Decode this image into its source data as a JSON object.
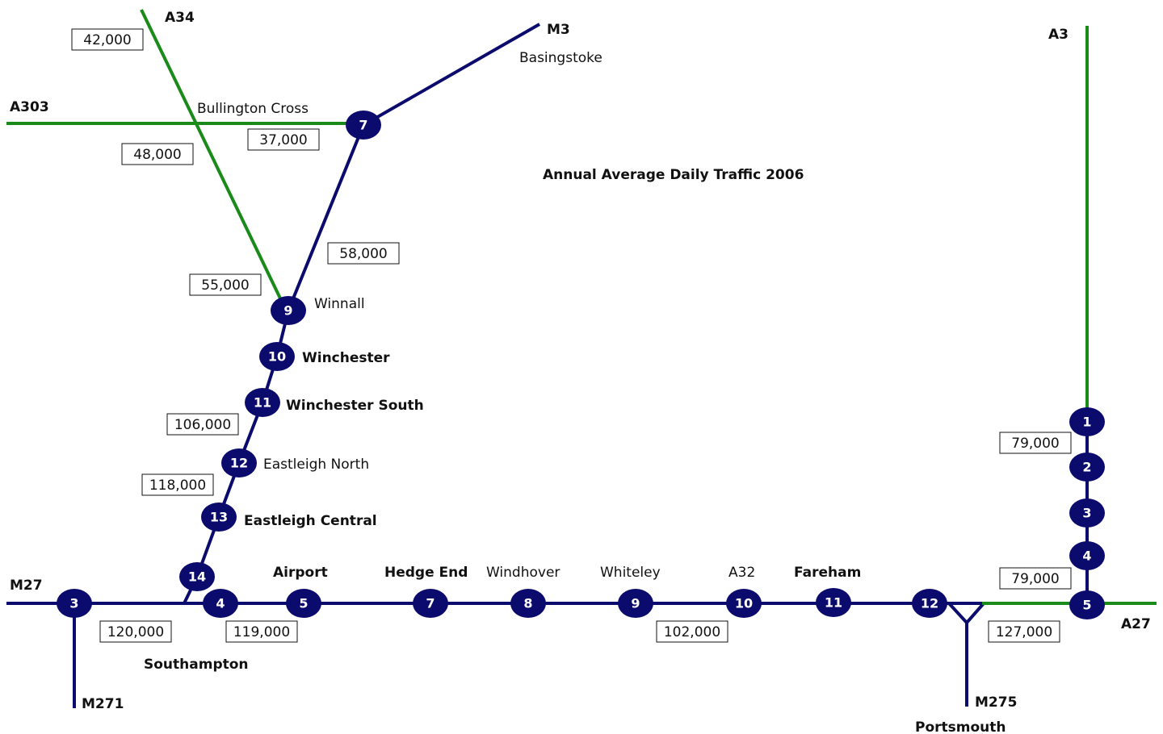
{
  "title": "Annual Average Daily Traffic 2006",
  "roads": [
    "A34",
    "M3",
    "A3",
    "A303",
    "M27",
    "M271",
    "M275",
    "A27"
  ],
  "places": [
    "Basingstoke",
    "Bullington Cross",
    "Winnall",
    "Winchester",
    "Winchester South",
    "Eastleigh North",
    "Eastleigh Central",
    "Airport",
    "Hedge End",
    "Windhover",
    "Whiteley",
    "A32",
    "Fareham",
    "Southampton",
    "Portsmouth"
  ],
  "junctions": {
    "m3": [
      "7",
      "9",
      "10",
      "11",
      "12",
      "13",
      "14"
    ],
    "m27": [
      "3",
      "4",
      "5",
      "7",
      "8",
      "9",
      "10",
      "11",
      "12"
    ],
    "a3": [
      "1",
      "2",
      "3",
      "4",
      "5"
    ]
  },
  "counts": [
    "42,000",
    "48,000",
    "37,000",
    "58,000",
    "55,000",
    "106,000",
    "118,000",
    "79,000",
    "79,000",
    "120,000",
    "119,000",
    "102,000",
    "127,000"
  ]
}
